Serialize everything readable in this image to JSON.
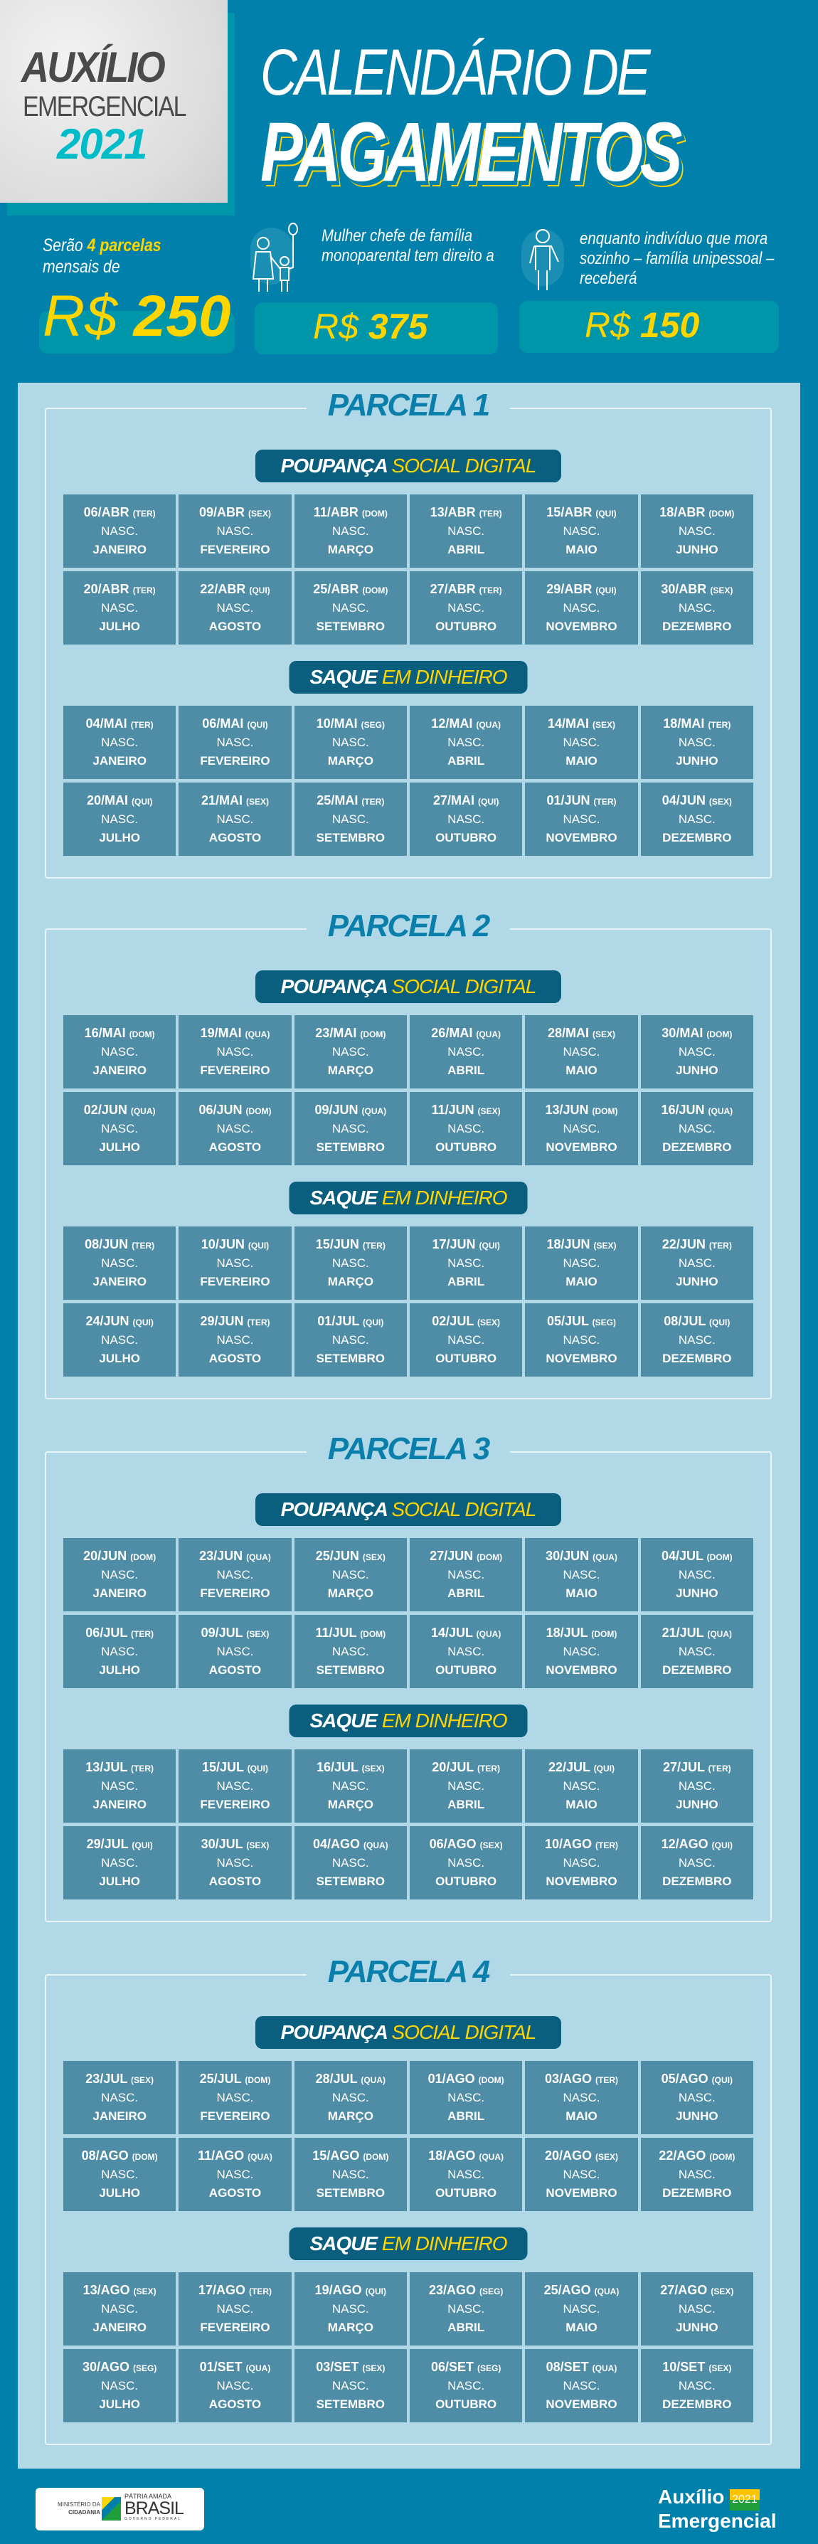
{
  "header": {
    "brand_line1": "AUXÍLIO",
    "brand_line2": "EMERGENCIAL",
    "brand_year": "2021",
    "title_line1": "CALENDÁRIO DE",
    "title_line2": "PAGAMENTOS"
  },
  "info": {
    "intro_pre": "Serão",
    "intro_highlight": "4 parcelas",
    "intro_post": "mensais de",
    "base_currency": "R$",
    "base_value": "250",
    "mother_text": "Mulher chefe de família monoparental tem direito a",
    "mother_currency": "R$",
    "mother_value": "375",
    "single_text": "enquanto indivíduo que mora sozinho – família unipessoal – receberá",
    "single_currency": "R$",
    "single_value": "150"
  },
  "nasc_label": "NASC.",
  "months": [
    "JANEIRO",
    "FEVEREIRO",
    "MARÇO",
    "ABRIL",
    "MAIO",
    "JUNHO",
    "JULHO",
    "AGOSTO",
    "SETEMBRO",
    "OUTUBRO",
    "NOVEMBRO",
    "DEZEMBRO"
  ],
  "section_labels": {
    "poupanca_white": "POUPANÇA",
    "poupanca_yellow": "SOCIAL DIGITAL",
    "saque_white": "SAQUE",
    "saque_yellow": "EM DINHEIRO"
  },
  "parcelas": [
    {
      "title": "PARCELA 1",
      "poupanca": [
        [
          "06/ABR",
          "(TER)"
        ],
        [
          "09/ABR",
          "(SEX)"
        ],
        [
          "11/ABR",
          "(DOM)"
        ],
        [
          "13/ABR",
          "(TER)"
        ],
        [
          "15/ABR",
          "(QUI)"
        ],
        [
          "18/ABR",
          "(DOM)"
        ],
        [
          "20/ABR",
          "(TER)"
        ],
        [
          "22/ABR",
          "(QUI)"
        ],
        [
          "25/ABR",
          "(DOM)"
        ],
        [
          "27/ABR",
          "(TER)"
        ],
        [
          "29/ABR",
          "(QUI)"
        ],
        [
          "30/ABR",
          "(SEX)"
        ]
      ],
      "saque": [
        [
          "04/MAI",
          "(TER)"
        ],
        [
          "06/MAI",
          "(QUI)"
        ],
        [
          "10/MAI",
          "(SEG)"
        ],
        [
          "12/MAI",
          "(QUA)"
        ],
        [
          "14/MAI",
          "(SEX)"
        ],
        [
          "18/MAI",
          "(TER)"
        ],
        [
          "20/MAI",
          "(QUI)"
        ],
        [
          "21/MAI",
          "(SEX)"
        ],
        [
          "25/MAI",
          "(TER)"
        ],
        [
          "27/MAI",
          "(QUI)"
        ],
        [
          "01/JUN",
          "(TER)"
        ],
        [
          "04/JUN",
          "(SEX)"
        ]
      ]
    },
    {
      "title": "PARCELA 2",
      "poupanca": [
        [
          "16/MAI",
          "(DOM)"
        ],
        [
          "19/MAI",
          "(QUA)"
        ],
        [
          "23/MAI",
          "(DOM)"
        ],
        [
          "26/MAI",
          "(QUA)"
        ],
        [
          "28/MAI",
          "(SEX)"
        ],
        [
          "30/MAI",
          "(DOM)"
        ],
        [
          "02/JUN",
          "(QUA)"
        ],
        [
          "06/JUN",
          "(DOM)"
        ],
        [
          "09/JUN",
          "(QUA)"
        ],
        [
          "11/JUN",
          "(SEX)"
        ],
        [
          "13/JUN",
          "(DOM)"
        ],
        [
          "16/JUN",
          "(QUA)"
        ]
      ],
      "saque": [
        [
          "08/JUN",
          "(TER)"
        ],
        [
          "10/JUN",
          "(QUI)"
        ],
        [
          "15/JUN",
          "(TER)"
        ],
        [
          "17/JUN",
          "(QUI)"
        ],
        [
          "18/JUN",
          "(SEX)"
        ],
        [
          "22/JUN",
          "(TER)"
        ],
        [
          "24/JUN",
          "(QUI)"
        ],
        [
          "29/JUN",
          "(TER)"
        ],
        [
          "01/JUL",
          "(QUI)"
        ],
        [
          "02/JUL",
          "(SEX)"
        ],
        [
          "05/JUL",
          "(SEG)"
        ],
        [
          "08/JUL",
          "(QUI)"
        ]
      ]
    },
    {
      "title": "PARCELA 3",
      "poupanca": [
        [
          "20/JUN",
          "(DOM)"
        ],
        [
          "23/JUN",
          "(QUA)"
        ],
        [
          "25/JUN",
          "(SEX)"
        ],
        [
          "27/JUN",
          "(DOM)"
        ],
        [
          "30/JUN",
          "(QUA)"
        ],
        [
          "04/JUL",
          "(DOM)"
        ],
        [
          "06/JUL",
          "(TER)"
        ],
        [
          "09/JUL",
          "(SEX)"
        ],
        [
          "11/JUL",
          "(DOM)"
        ],
        [
          "14/JUL",
          "(QUA)"
        ],
        [
          "18/JUL",
          "(DOM)"
        ],
        [
          "21/JUL",
          "(QUA)"
        ]
      ],
      "saque": [
        [
          "13/JUL",
          "(TER)"
        ],
        [
          "15/JUL",
          "(QUI)"
        ],
        [
          "16/JUL",
          "(SEX)"
        ],
        [
          "20/JUL",
          "(TER)"
        ],
        [
          "22/JUL",
          "(QUI)"
        ],
        [
          "27/JUL",
          "(TER)"
        ],
        [
          "29/JUL",
          "(QUI)"
        ],
        [
          "30/JUL",
          "(SEX)"
        ],
        [
          "04/AGO",
          "(QUA)"
        ],
        [
          "06/AGO",
          "(SEX)"
        ],
        [
          "10/AGO",
          "(TER)"
        ],
        [
          "12/AGO",
          "(QUI)"
        ]
      ]
    },
    {
      "title": "PARCELA 4",
      "poupanca": [
        [
          "23/JUL",
          "(SEX)"
        ],
        [
          "25/JUL",
          "(DOM)"
        ],
        [
          "28/JUL",
          "(QUA)"
        ],
        [
          "01/AGO",
          "(DOM)"
        ],
        [
          "03/AGO",
          "(TER)"
        ],
        [
          "05/AGO",
          "(QUI)"
        ],
        [
          "08/AGO",
          "(DOM)"
        ],
        [
          "11/AGO",
          "(QUA)"
        ],
        [
          "15/AGO",
          "(DOM)"
        ],
        [
          "18/AGO",
          "(QUA)"
        ],
        [
          "20/AGO",
          "(SEX)"
        ],
        [
          "22/AGO",
          "(DOM)"
        ]
      ],
      "saque": [
        [
          "13/AGO",
          "(SEX)"
        ],
        [
          "17/AGO",
          "(TER)"
        ],
        [
          "19/AGO",
          "(QUI)"
        ],
        [
          "23/AGO",
          "(SEG)"
        ],
        [
          "25/AGO",
          "(QUA)"
        ],
        [
          "27/AGO",
          "(SEX)"
        ],
        [
          "30/AGO",
          "(SEG)"
        ],
        [
          "01/SET",
          "(QUA)"
        ],
        [
          "03/SET",
          "(SEX)"
        ],
        [
          "06/SET",
          "(SEG)"
        ],
        [
          "08/SET",
          "(QUA)"
        ],
        [
          "10/SET",
          "(SEX)"
        ]
      ]
    }
  ],
  "footer": {
    "ministry_line1": "MINISTÉRIO DA",
    "ministry_line2": "CIDADANIA",
    "gov_line1": "PÁTRIA AMADA",
    "gov_line2": "BRASIL",
    "gov_line3": "GOVERNO FEDERAL",
    "program_line1": "Auxílio",
    "program_year": "2021",
    "program_line2": "Emergencial"
  },
  "colors": {
    "background": "#0080ab",
    "panel": "#b1d8e6",
    "cell": "#4f8ca6",
    "pill": "#0a5f7e",
    "accent_yellow": "#ffd500",
    "accent_teal": "#00bcc8"
  }
}
